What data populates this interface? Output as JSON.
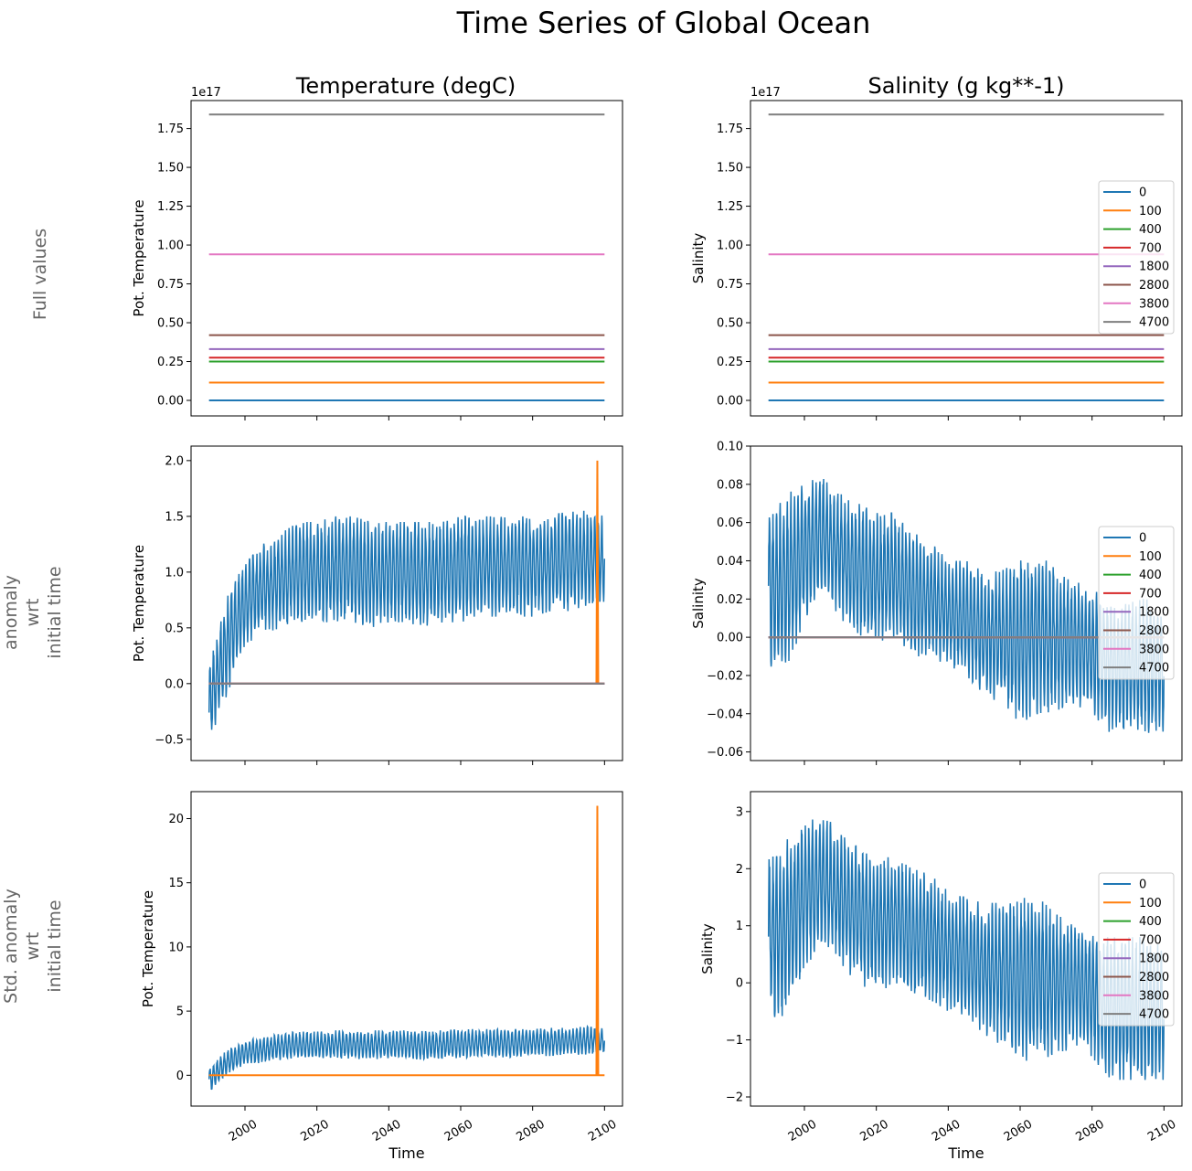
{
  "title": "Time Series of Global Ocean",
  "column_titles": [
    "Temperature (degC)",
    "Salinity (g kg**-1)"
  ],
  "row_labels": [
    [
      "Full values"
    ],
    [
      "anomaly",
      "wrt",
      "initial time"
    ],
    [
      "Std. anomaly",
      "wrt",
      "initial time"
    ]
  ],
  "xlabel": "Time",
  "colors": {
    "0": "#1f77b4",
    "100": "#ff7f0e",
    "400": "#2ca02c",
    "700": "#d62728",
    "1800": "#9467bd",
    "2800": "#8c564b",
    "3800": "#e377c2",
    "4700": "#7f7f7f"
  },
  "legend_entries": [
    "0",
    "100",
    "400",
    "700",
    "1800",
    "2800",
    "3800",
    "4700"
  ],
  "chart_data": [
    {
      "type": "line",
      "row": 0,
      "col": 0,
      "ylabel": "Pot. Temperature",
      "offset_text": "1e17",
      "xlim": [
        1985,
        2105
      ],
      "ylim": [
        -0.1,
        1.93
      ],
      "yticks": [
        0,
        0.25,
        0.5,
        0.75,
        1.0,
        1.25,
        1.5,
        1.75
      ],
      "ytick_fmt": 2,
      "xticks": [
        2000,
        2020,
        2040,
        2060,
        2080,
        2100
      ],
      "show_xticklabels": false,
      "legend": false,
      "constant_series": {
        "0": 0.0,
        "100": 0.115,
        "400": 0.25,
        "700": 0.275,
        "1800": 0.33,
        "2800": 0.42,
        "3800": 0.94,
        "4700": 1.84
      }
    },
    {
      "type": "line",
      "row": 0,
      "col": 1,
      "ylabel": "Salinity",
      "offset_text": "1e17",
      "xlim": [
        1985,
        2105
      ],
      "ylim": [
        -0.1,
        1.93
      ],
      "yticks": [
        0,
        0.25,
        0.5,
        0.75,
        1.0,
        1.25,
        1.5,
        1.75
      ],
      "ytick_fmt": 2,
      "xticks": [
        2000,
        2020,
        2040,
        2060,
        2080,
        2100
      ],
      "show_xticklabels": false,
      "legend": "center-right",
      "constant_series": {
        "0": 0.0,
        "100": 0.115,
        "400": 0.25,
        "700": 0.275,
        "1800": 0.33,
        "2800": 0.42,
        "3800": 0.94,
        "4700": 1.84
      }
    },
    {
      "type": "line",
      "row": 1,
      "col": 0,
      "ylabel": "Pot. Temperature",
      "xlim": [
        1985,
        2105
      ],
      "ylim": [
        -0.69,
        2.13
      ],
      "yticks": [
        -0.5,
        0,
        0.5,
        1.0,
        1.5,
        2.0
      ],
      "ytick_fmt": 1,
      "xticks": [
        2000,
        2020,
        2040,
        2060,
        2080,
        2100
      ],
      "show_xticklabels": false,
      "legend": false,
      "constant_series": {
        "100": 0,
        "400": 0,
        "700": 0,
        "1800": 0,
        "2800": 0,
        "3800": 0,
        "4700": 0
      },
      "spike": {
        "series": "100",
        "year": 2098,
        "value": 2.0
      },
      "envelope_years": [
        1990,
        1995,
        2000,
        2005,
        2010,
        2015,
        2020,
        2025,
        2030,
        2035,
        2040,
        2045,
        2050,
        2055,
        2060,
        2065,
        2070,
        2075,
        2080,
        2085,
        2090,
        2095,
        2100
      ],
      "series0_upper": [
        0.15,
        0.8,
        1.1,
        1.25,
        1.35,
        1.45,
        1.45,
        1.5,
        1.5,
        1.45,
        1.45,
        1.45,
        1.45,
        1.45,
        1.5,
        1.5,
        1.5,
        1.5,
        1.5,
        1.5,
        1.55,
        1.55,
        1.5
      ],
      "series0_lower": [
        -0.55,
        -0.1,
        0.35,
        0.45,
        0.5,
        0.55,
        0.55,
        0.55,
        0.55,
        0.5,
        0.55,
        0.55,
        0.5,
        0.55,
        0.55,
        0.6,
        0.6,
        0.6,
        0.6,
        0.65,
        0.65,
        0.7,
        0.7
      ]
    },
    {
      "type": "line",
      "row": 1,
      "col": 1,
      "ylabel": "Salinity",
      "xlim": [
        1985,
        2105
      ],
      "ylim": [
        -0.0645,
        0.1
      ],
      "yticks": [
        -0.06,
        -0.04,
        -0.02,
        0,
        0.02,
        0.04,
        0.06,
        0.08,
        0.1
      ],
      "ytick_fmt": 2,
      "xticks": [
        2000,
        2020,
        2040,
        2060,
        2080,
        2100
      ],
      "show_xticklabels": false,
      "legend": "center-right",
      "constant_series": {
        "100": 0,
        "400": 0,
        "700": 0,
        "1800": 0,
        "2800": 0,
        "3800": 0,
        "4700": 0
      },
      "envelope_years": [
        1990,
        1995,
        2000,
        2005,
        2010,
        2015,
        2020,
        2025,
        2030,
        2035,
        2040,
        2045,
        2050,
        2055,
        2060,
        2065,
        2070,
        2075,
        2080,
        2085,
        2090,
        2095,
        2100
      ],
      "series0_upper": [
        0.065,
        0.075,
        0.08,
        0.085,
        0.075,
        0.07,
        0.065,
        0.065,
        0.055,
        0.05,
        0.04,
        0.04,
        0.035,
        0.035,
        0.04,
        0.045,
        0.035,
        0.03,
        0.025,
        0.02,
        0.02,
        0.02,
        0.015
      ],
      "series0_lower": [
        -0.02,
        -0.02,
        0.01,
        0.02,
        0.01,
        0.0,
        -0.005,
        0.0,
        -0.01,
        -0.01,
        -0.015,
        -0.02,
        -0.03,
        -0.035,
        -0.045,
        -0.04,
        -0.04,
        -0.035,
        -0.04,
        -0.05,
        -0.05,
        -0.05,
        -0.05
      ]
    },
    {
      "type": "line",
      "row": 2,
      "col": 0,
      "ylabel": "Pot. Temperature",
      "xlim": [
        1985,
        2105
      ],
      "ylim": [
        -2.4,
        22.1
      ],
      "yticks": [
        0,
        5,
        10,
        15,
        20
      ],
      "ytick_fmt": 0,
      "xticks": [
        2000,
        2020,
        2040,
        2060,
        2080,
        2100
      ],
      "show_xticklabels": true,
      "legend": false,
      "constant_series": {
        "100": 0
      },
      "spike": {
        "series": "100",
        "year": 2098,
        "value": 21.0
      },
      "envelope_years": [
        1990,
        1995,
        2000,
        2005,
        2010,
        2015,
        2020,
        2025,
        2030,
        2035,
        2040,
        2045,
        2050,
        2055,
        2060,
        2065,
        2070,
        2075,
        2080,
        2085,
        2090,
        2095,
        2100
      ],
      "series0_upper": [
        0.5,
        2.0,
        2.7,
        3.0,
        3.3,
        3.4,
        3.4,
        3.5,
        3.5,
        3.5,
        3.5,
        3.5,
        3.5,
        3.5,
        3.6,
        3.6,
        3.6,
        3.6,
        3.6,
        3.7,
        3.7,
        3.8,
        3.7
      ],
      "series0_lower": [
        -1.3,
        0,
        0.8,
        1.0,
        1.2,
        1.3,
        1.3,
        1.3,
        1.3,
        1.2,
        1.3,
        1.3,
        1.2,
        1.3,
        1.3,
        1.4,
        1.4,
        1.4,
        1.5,
        1.5,
        1.6,
        1.6,
        1.7
      ]
    },
    {
      "type": "line",
      "row": 2,
      "col": 1,
      "ylabel": "Salinity",
      "xlim": [
        1985,
        2105
      ],
      "ylim": [
        -2.16,
        3.35
      ],
      "yticks": [
        -2,
        -1,
        0,
        1,
        2,
        3
      ],
      "ytick_fmt": 0,
      "xticks": [
        2000,
        2020,
        2040,
        2060,
        2080,
        2100
      ],
      "show_xticklabels": true,
      "legend": "center-right",
      "constant_series": {},
      "envelope_years": [
        1990,
        1995,
        2000,
        2005,
        2010,
        2015,
        2020,
        2025,
        2030,
        2035,
        2040,
        2045,
        2050,
        2055,
        2060,
        2065,
        2070,
        2075,
        2080,
        2085,
        2090,
        2095,
        2100
      ],
      "series0_upper": [
        2.2,
        2.5,
        2.8,
        3.0,
        2.6,
        2.4,
        2.2,
        2.2,
        2.0,
        1.9,
        1.6,
        1.5,
        1.4,
        1.4,
        1.5,
        1.5,
        1.2,
        1.1,
        0.9,
        0.8,
        0.8,
        0.8,
        0.6
      ],
      "series0_lower": [
        -0.6,
        -0.6,
        0.3,
        0.6,
        0.3,
        0.0,
        -0.2,
        0,
        -0.3,
        -0.3,
        -0.5,
        -0.6,
        -0.9,
        -1.1,
        -1.4,
        -1.3,
        -1.3,
        -1.1,
        -1.3,
        -1.7,
        -1.7,
        -1.7,
        -1.7
      ]
    }
  ]
}
